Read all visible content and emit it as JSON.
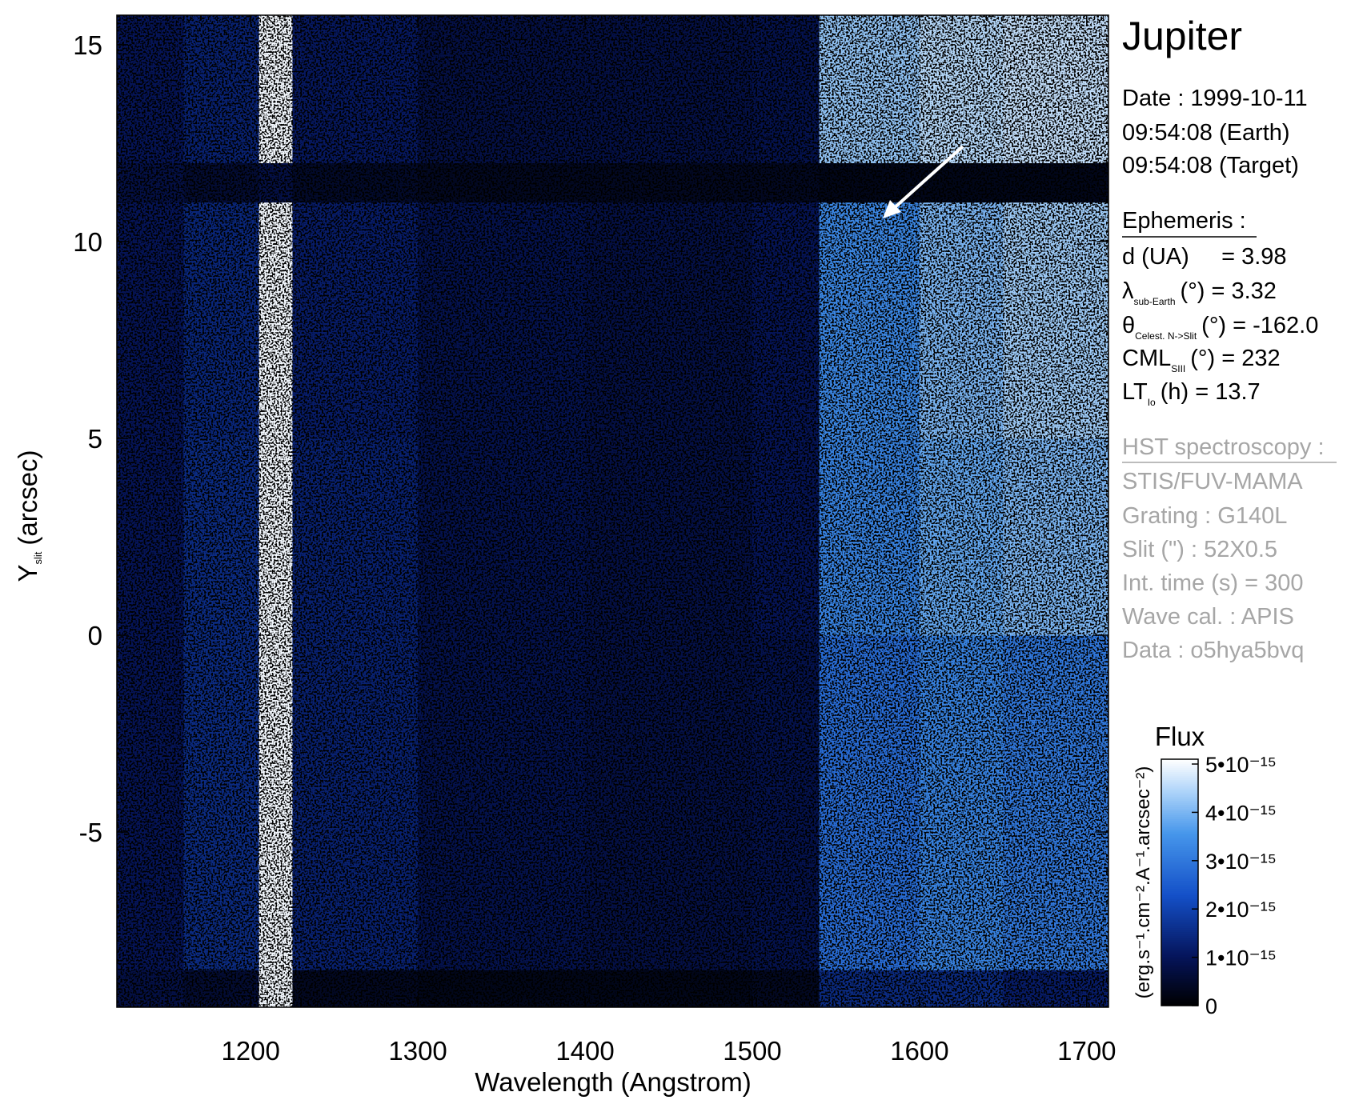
{
  "chart_data": {
    "type": "heatmap",
    "title": "Jupiter",
    "xlabel": "Wavelength (Angstrom)",
    "ylabel": {
      "main": "Y",
      "sub": "slit",
      "unit": "(arcsec)"
    },
    "xlim": [
      1120,
      1713
    ],
    "ylim": [
      -9.45,
      15.75
    ],
    "xticks": [
      1200,
      1300,
      1400,
      1500,
      1600,
      1700
    ],
    "yticks": [
      15,
      10,
      5,
      0,
      -5
    ],
    "xminor": 10,
    "yminor": 1,
    "x_bins": [
      1120,
      1160,
      1205,
      1225,
      1300,
      1400,
      1500,
      1540,
      1600,
      1650,
      1713
    ],
    "y_bins": [
      -9.45,
      -8.5,
      0,
      5,
      11,
      12,
      15.75
    ],
    "z": [
      [
        8e-16,
        6e-16,
        5e-15,
        4e-16,
        3e-16,
        3e-16,
        4e-16,
        1.5e-15,
        1.5e-15,
        1.2e-15
      ],
      [
        1e-15,
        1.5e-15,
        5e-15,
        1.3e-15,
        9e-16,
        8e-16,
        9e-16,
        2.8e-15,
        3.2e-15,
        3e-15
      ],
      [
        1e-15,
        1.5e-15,
        5e-15,
        1.3e-15,
        9e-16,
        8e-16,
        1e-15,
        3.2e-15,
        3.8e-15,
        4e-15
      ],
      [
        1e-15,
        1.4e-15,
        5e-15,
        1.2e-15,
        9e-16,
        8e-16,
        1e-15,
        3.3e-15,
        4e-15,
        4.3e-15
      ],
      [
        8e-16,
        6e-16,
        8e-16,
        5e-16,
        4e-16,
        4e-16,
        4e-16,
        3e-16,
        3e-16,
        3e-16
      ],
      [
        1e-15,
        1.3e-15,
        5e-15,
        1.1e-15,
        8e-16,
        8e-16,
        9e-16,
        4.2e-15,
        4.5e-15,
        4.6e-15
      ]
    ],
    "colorbar": {
      "title": "Flux",
      "label": "(erg.s⁻¹.cm⁻².A⁻¹.arcsec⁻²)",
      "zlim": [
        0,
        5.1e-15
      ],
      "ticks": [
        0,
        {
          "value": 1e-15,
          "label": "1•10⁻¹⁵"
        },
        {
          "value": 2e-15,
          "label": "2•10⁻¹⁵"
        },
        {
          "value": 3e-15,
          "label": "3•10⁻¹⁵"
        },
        {
          "value": 4e-15,
          "label": "4•10⁻¹⁵"
        },
        {
          "value": 5e-15,
          "label": "5•10⁻¹⁵"
        }
      ]
    },
    "info": {
      "date": "Date : 1999-10-11",
      "time_earth": "09:54:08 (Earth)",
      "time_target": "09:54:08 (Target)"
    },
    "ephemeris": {
      "heading": "Ephemeris :",
      "distance": "d (UA)     = 3.98",
      "lambda": {
        "symbol": "λ",
        "sub": "sub-Earth",
        "rest": "(°)  = 3.32"
      },
      "theta": {
        "symbol": "θ",
        "sub": "Celest. N->Slit",
        "rest": "(°) = -162.0"
      },
      "cml": {
        "symbol": "CML",
        "sub": "SIII",
        "rest": "(°) = 232"
      },
      "lt": {
        "symbol": "LT",
        "sub": "Io",
        "rest": "(h) = 13.7"
      }
    },
    "observation": {
      "heading": "HST spectroscopy :",
      "instrument": "STIS/FUV-MAMA",
      "grating": "Grating : G140L",
      "slit": "Slit (\") : 52X0.5",
      "int_time": "Int. time (s) = 300",
      "wave_cal": "Wave cal. : APIS",
      "data": "Data : o5hya5bvq"
    }
  }
}
